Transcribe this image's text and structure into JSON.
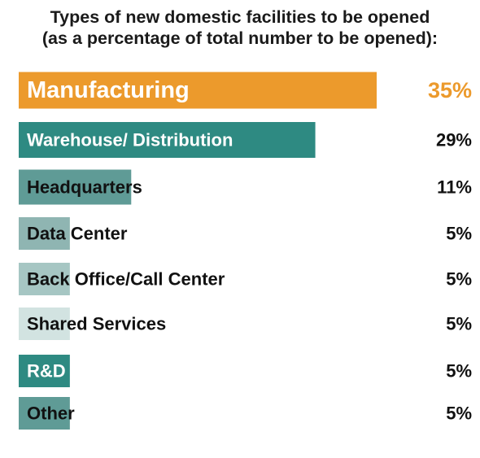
{
  "chart_data": {
    "type": "bar",
    "orientation": "horizontal",
    "title_lines": [
      "Types of new domestic facilities to be opened",
      "(as a percentage of total number to be opened):"
    ],
    "categories": [
      "Manufacturing",
      "Warehouse/ Distribution",
      "Headquarters",
      "Data Center",
      "Back Office/Call Center",
      "Shared Services",
      "R&D",
      "Other"
    ],
    "values": [
      35,
      29,
      11,
      5,
      5,
      5,
      5,
      5
    ],
    "value_labels": [
      "35%",
      "29%",
      "11%",
      "5%",
      "5%",
      "5%",
      "5%",
      "5%"
    ],
    "colors": [
      "#ec9a2c",
      "#2e8a82",
      "#5f9b96",
      "#8fb5b2",
      "#a6c6c3",
      "#d2e3e1",
      "#2e8a82",
      "#5f9b96"
    ],
    "label_colors": [
      "#ffffff",
      "#ffffff",
      "#111111",
      "#111111",
      "#111111",
      "#111111",
      "#ffffff",
      "#111111"
    ],
    "value_label_colors": [
      "#ec9a2c",
      "#111111",
      "#111111",
      "#111111",
      "#111111",
      "#111111",
      "#111111",
      "#111111"
    ],
    "xlim": [
      0,
      35
    ],
    "grid": false,
    "legend": "none"
  }
}
